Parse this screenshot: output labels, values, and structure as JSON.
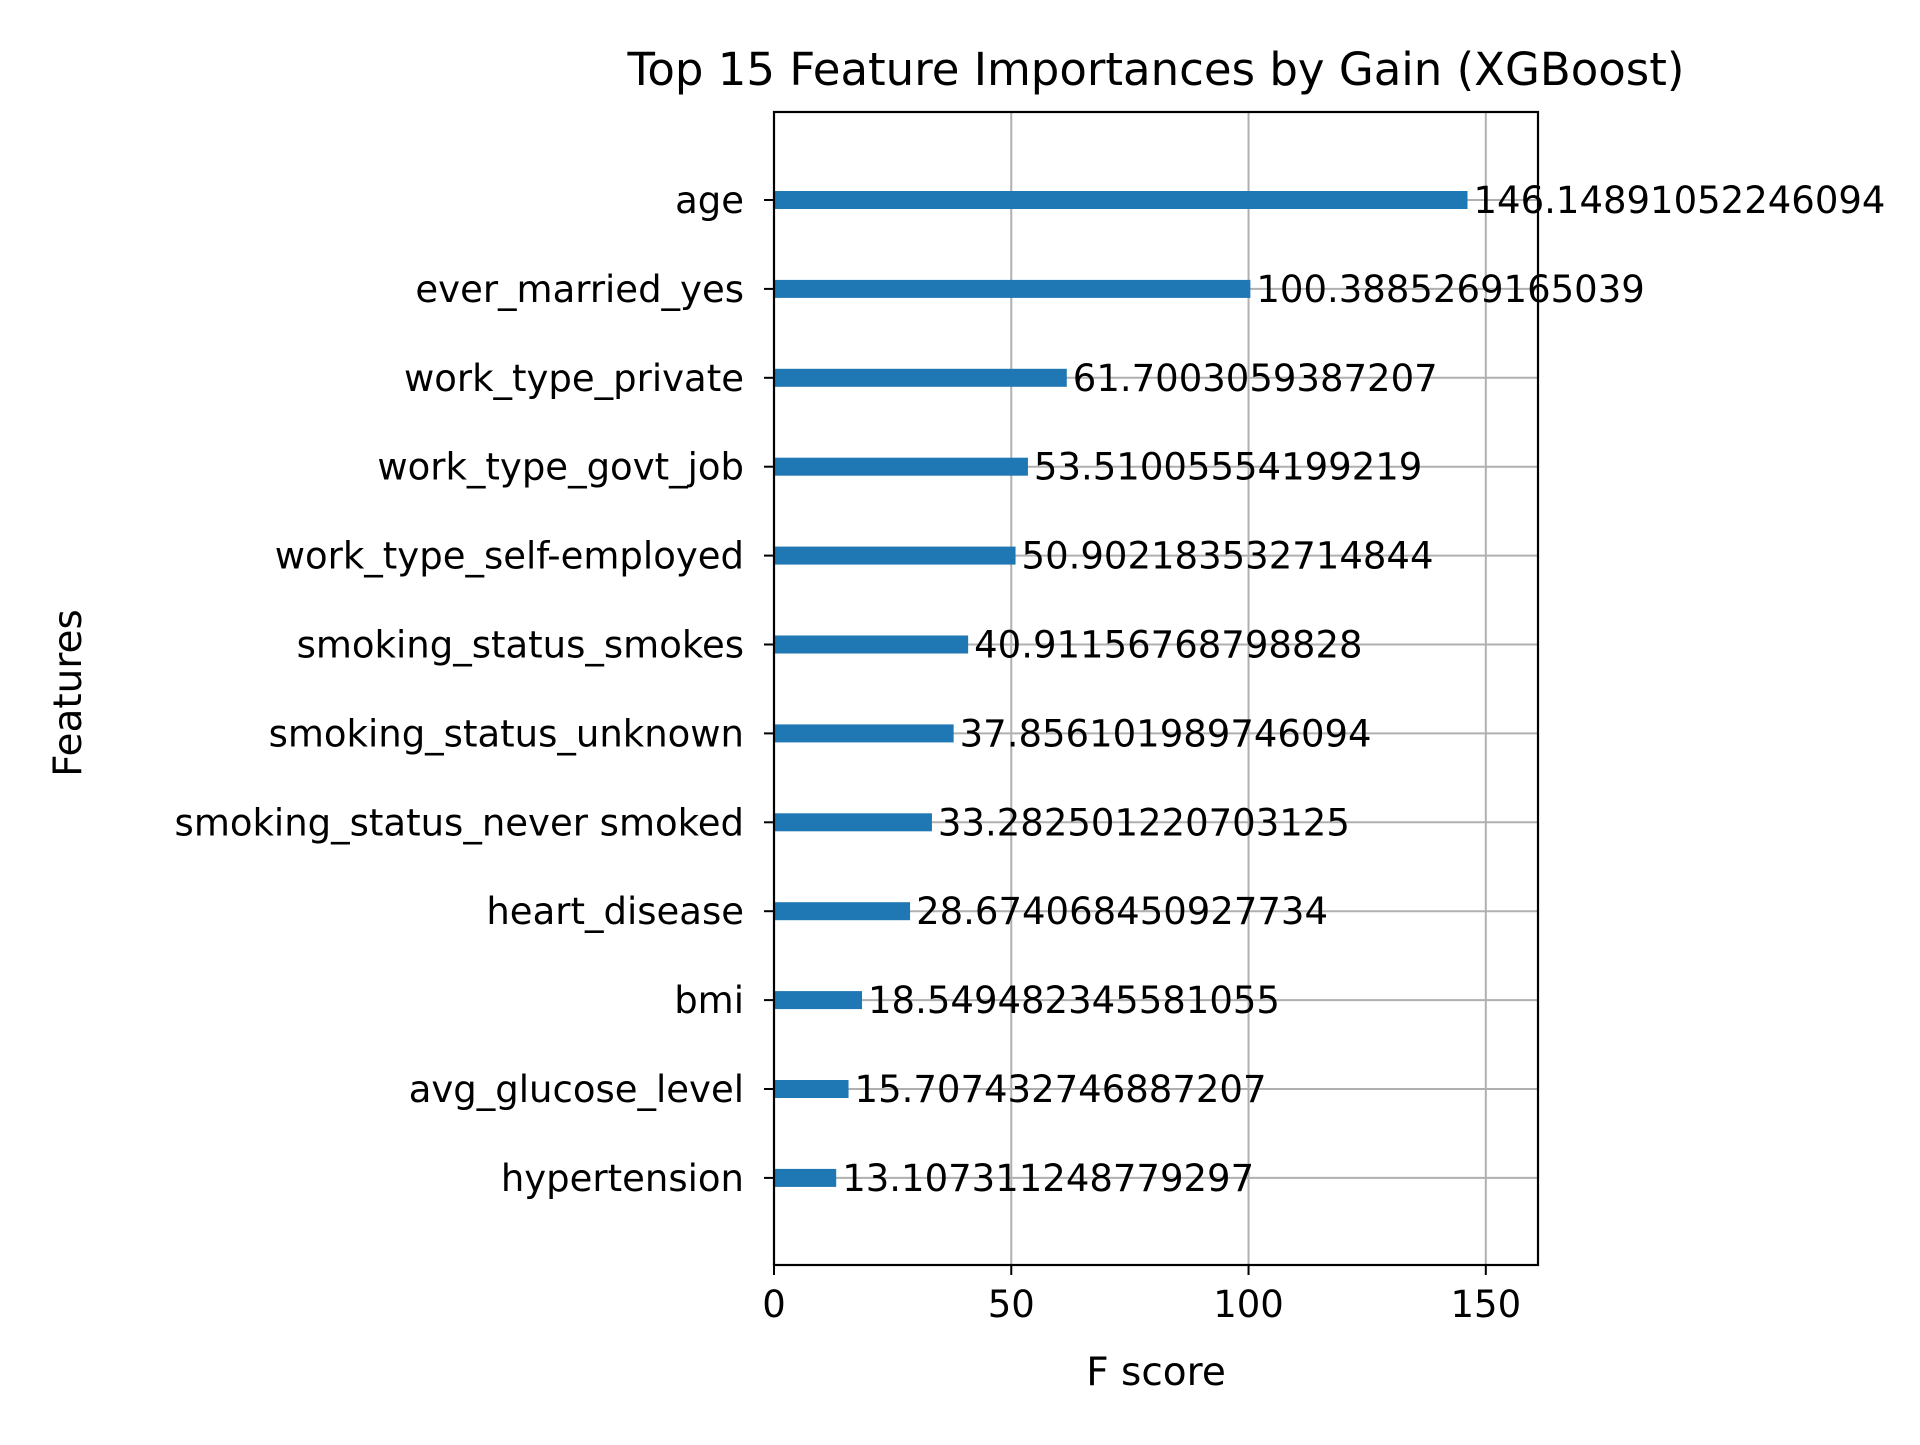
{
  "chart_data": {
    "type": "bar",
    "orientation": "horizontal",
    "title": "Top 15 Feature Importances by Gain (XGBoost)",
    "xlabel": "F score",
    "ylabel": "Features",
    "xlim": [
      0,
      161
    ],
    "xticks": [
      0,
      50,
      100,
      150
    ],
    "grid": true,
    "bar_color": "#1f77b4",
    "categories": [
      "age",
      "ever_married_yes",
      "work_type_private",
      "work_type_govt_job",
      "work_type_self-employed",
      "smoking_status_smokes",
      "smoking_status_unknown",
      "smoking_status_never smoked",
      "heart_disease",
      "bmi",
      "avg_glucose_level",
      "hypertension"
    ],
    "values": [
      146.14891052246094,
      100.3885269165039,
      61.7003059387207,
      53.51005554199219,
      50.902183532714844,
      40.91156768798828,
      37.856101989746094,
      33.282501220703125,
      28.674068450927734,
      18.549482345581055,
      15.707432746887207,
      13.107311248779297
    ],
    "data_labels": [
      "146.14891052246094",
      "100.3885269165039",
      "61.7003059387207",
      "53.51005554199219",
      "50.902183532714844",
      "40.91156768798828",
      "37.856101989746094",
      "33.282501220703125",
      "28.674068450927734",
      "18.549482345581055",
      "15.707432746887207",
      "13.107311248779297"
    ]
  }
}
